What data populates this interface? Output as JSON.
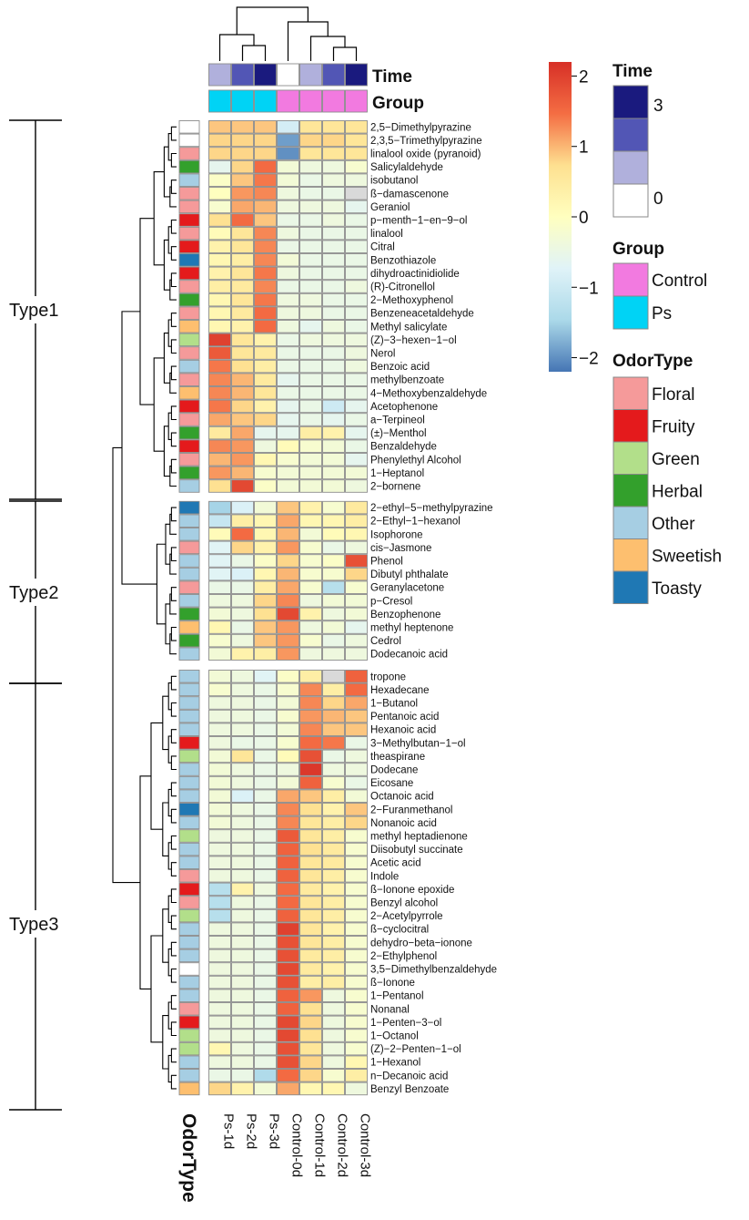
{
  "chart_data": {
    "type": "heatmap",
    "title": "",
    "columns": [
      "Ps-1d",
      "Ps-2d",
      "Ps-3d",
      "Control-0d",
      "Control-1d",
      "Control-2d",
      "Control-3d"
    ],
    "column_annotations": {
      "Time": [
        1,
        2,
        3,
        0,
        1,
        2,
        3
      ],
      "Group": [
        "Ps",
        "Ps",
        "Ps",
        "Control",
        "Control",
        "Control",
        "Control"
      ]
    },
    "rows": [
      "2,5−Dimethylpyrazine",
      "2,3,5−Trimethylpyrazine",
      "linalool oxide (pyranoid)",
      "Salicylaldehyde",
      "isobutanol",
      "ß−damascenone",
      "Geraniol",
      "p−menth−1−en−9−ol",
      "linalool",
      "Citral",
      "Benzothiazole",
      "dihydroactinidiolide",
      "(R)-Citronellol",
      "2−Methoxyphenol",
      "Benzeneacetaldehyde",
      "Methyl salicylate",
      "(Z)−3−hexen−1−ol",
      "Nerol",
      "Benzoic acid",
      "methylbenzoate",
      "4−Methoxybenzaldehyde",
      "Acetophenone",
      "a−Terpineol",
      "(±)−Menthol",
      "Benzaldehyde",
      "Phenylethyl Alcohol",
      "1−Heptanol",
      "2−bornene",
      "2−ethyl−5−methylpyrazine",
      "2−Ethyl−1−hexanol",
      "Isophorone",
      "cis−Jasmone",
      "Phenol",
      "Dibutyl phthalate",
      "Geranylacetone",
      "p−Cresol",
      "Benzophenone",
      "methyl heptenone",
      "Cedrol",
      "Dodecanoic acid",
      "tropone",
      "Hexadecane",
      "1−Butanol",
      "Pentanoic acid",
      "Hexanoic acid",
      "3−Methylbutan−1−ol",
      "theaspirane",
      "Dodecane",
      "Eicosane",
      "Octanoic acid",
      "2−Furanmethanol",
      "Nonanoic acid",
      "methyl heptadienone",
      "Diisobutyl succinate",
      "Acetic acid",
      "Indole",
      "ß−Ionone epoxide",
      "Benzyl alcohol",
      "2−Acetylpyrrole",
      "ß−cyclocitral",
      "dehydro−beta−ionone",
      "2−Ethylphenol",
      "3,5−Dimethylbenzaldehyde",
      "ß−Ionone",
      "1−Pentanol",
      "Nonanal",
      "1−Penten−3−ol",
      "1−Octanol",
      "(Z)−2−Penten−1−ol",
      "1−Hexanol",
      "n−Decanoic acid",
      "Benzyl Benzoate"
    ],
    "odor_type": [
      "None",
      "None",
      "Floral",
      "Herbal",
      "Other",
      "Floral",
      "Floral",
      "Fruity",
      "Floral",
      "Fruity",
      "Toasty",
      "Fruity",
      "Floral",
      "Herbal",
      "Floral",
      "Sweetish",
      "Green",
      "Floral",
      "Other",
      "Floral",
      "Sweetish",
      "Fruity",
      "Floral",
      "Herbal",
      "Fruity",
      "Floral",
      "Herbal",
      "Other",
      "Toasty",
      "Other",
      "Other",
      "Floral",
      "Other",
      "Other",
      "Floral",
      "Other",
      "Herbal",
      "Sweetish",
      "Herbal",
      "Other",
      "Other",
      "Other",
      "Other",
      "Other",
      "Other",
      "Fruity",
      "Green",
      "Other",
      "Other",
      "Other",
      "Toasty",
      "Other",
      "Green",
      "Other",
      "Other",
      "Floral",
      "Fruity",
      "Floral",
      "Green",
      "Other",
      "Other",
      "Other",
      "None",
      "Other",
      "Other",
      "Floral",
      "Fruity",
      "Green",
      "Green",
      "Other",
      "Other",
      "Sweetish"
    ],
    "values": [
      [
        0.9,
        0.9,
        0.9,
        -0.9,
        0.6,
        0.6,
        0.6
      ],
      [
        0.8,
        0.8,
        0.8,
        -1.9,
        0.8,
        0.8,
        0.6
      ],
      [
        0.8,
        0.8,
        0.8,
        -2.0,
        0.6,
        0.6,
        0.6
      ],
      [
        -0.6,
        0.8,
        1.5,
        -0.3,
        -0.4,
        -0.4,
        -0.2
      ],
      [
        -0.1,
        0.9,
        1.4,
        -0.3,
        -0.5,
        -0.4,
        -0.4
      ],
      [
        0.0,
        1.2,
        1.3,
        -0.4,
        -0.5,
        -0.5,
        "NA"
      ],
      [
        -0.2,
        1.1,
        1.0,
        -0.4,
        -0.4,
        -0.4,
        -0.6
      ],
      [
        0.7,
        1.5,
        0.9,
        -0.5,
        -0.5,
        -0.4,
        -0.5
      ],
      [
        0.1,
        0.6,
        1.3,
        -0.4,
        -0.5,
        -0.5,
        -0.5
      ],
      [
        0.3,
        0.6,
        1.3,
        -0.5,
        -0.5,
        -0.5,
        -0.5
      ],
      [
        0.2,
        0.4,
        1.3,
        -0.3,
        -0.5,
        -0.5,
        -0.5
      ],
      [
        0.3,
        0.6,
        1.4,
        -0.4,
        -0.5,
        -0.5,
        -0.5
      ],
      [
        0.4,
        0.5,
        1.3,
        -0.5,
        -0.5,
        -0.5,
        -0.4
      ],
      [
        0.2,
        0.6,
        1.4,
        -0.4,
        -0.4,
        -0.5,
        -0.5
      ],
      [
        0.2,
        0.5,
        1.5,
        -0.4,
        -0.4,
        -0.5,
        -0.5
      ],
      [
        0.2,
        0.3,
        1.5,
        -0.4,
        -0.6,
        -0.4,
        -0.5
      ],
      [
        2.0,
        0.6,
        0.3,
        -0.5,
        -0.4,
        -0.4,
        -0.4
      ],
      [
        1.7,
        0.6,
        0.5,
        -0.5,
        -0.5,
        -0.5,
        -0.4
      ],
      [
        1.4,
        0.7,
        0.4,
        -0.5,
        -0.5,
        -0.5,
        -0.4
      ],
      [
        1.3,
        1.0,
        0.5,
        -0.6,
        -0.5,
        -0.5,
        -0.5
      ],
      [
        1.3,
        1.0,
        0.6,
        -0.5,
        -0.5,
        -0.5,
        -0.5
      ],
      [
        1.4,
        0.8,
        0.3,
        -0.6,
        -0.5,
        -1.0,
        -0.6
      ],
      [
        1.1,
        0.9,
        0.8,
        -0.6,
        -0.5,
        -0.6,
        -0.5
      ],
      [
        0.5,
        1.1,
        -0.6,
        -0.6,
        0.4,
        0.3,
        -0.6
      ],
      [
        1.3,
        1.2,
        -0.4,
        0.1,
        -0.2,
        -0.3,
        -0.5
      ],
      [
        1.0,
        1.2,
        0.2,
        -0.2,
        -0.3,
        -0.3,
        -0.6
      ],
      [
        1.2,
        1.0,
        -0.2,
        -0.3,
        -0.3,
        -0.3,
        -0.3
      ],
      [
        0.7,
        1.9,
        -0.1,
        -0.3,
        -0.3,
        -0.3,
        -0.4
      ],
      [
        -1.5,
        -0.8,
        -0.3,
        0.9,
        0.3,
        -0.2,
        0.5
      ],
      [
        -1.1,
        0.4,
        0.2,
        1.1,
        0.2,
        0.2,
        0.4
      ],
      [
        0.1,
        1.5,
        0.2,
        1.0,
        -0.3,
        0.1,
        0.2
      ],
      [
        -0.7,
        0.8,
        0.3,
        1.2,
        -0.2,
        -0.5,
        -0.4
      ],
      [
        -0.7,
        -0.5,
        -0.1,
        0.8,
        -0.2,
        -0.1,
        1.8
      ],
      [
        -0.7,
        -0.8,
        0.2,
        1.0,
        -0.2,
        -0.2,
        0.8
      ],
      [
        -0.5,
        -0.5,
        0.4,
        1.1,
        -0.2,
        -1.3,
        -0.2
      ],
      [
        -0.4,
        -0.4,
        0.8,
        1.3,
        -0.4,
        -0.3,
        -0.3
      ],
      [
        -0.3,
        -0.4,
        0.7,
        1.9,
        0.3,
        -0.4,
        -0.3
      ],
      [
        0.2,
        -0.5,
        0.9,
        1.2,
        -0.4,
        -0.3,
        -0.6
      ],
      [
        -0.2,
        -0.4,
        0.9,
        1.2,
        -0.2,
        -0.5,
        -0.4
      ],
      [
        -0.3,
        0.3,
        0.4,
        1.2,
        -0.4,
        -0.4,
        -0.4
      ],
      [
        -0.3,
        -0.4,
        -0.7,
        -0.1,
        0.4,
        "NA",
        1.6
      ],
      [
        -0.2,
        -0.4,
        -0.5,
        -0.2,
        1.3,
        0.4,
        1.5
      ],
      [
        -0.4,
        -0.4,
        -0.5,
        -0.3,
        1.3,
        0.8,
        1.1
      ],
      [
        -0.4,
        -0.4,
        -0.5,
        -0.2,
        1.2,
        1.0,
        0.9
      ],
      [
        -0.4,
        -0.4,
        -0.5,
        -0.3,
        1.3,
        0.9,
        0.9
      ],
      [
        -0.4,
        -0.5,
        -0.5,
        -0.2,
        1.5,
        1.4,
        -0.5
      ],
      [
        -0.3,
        0.6,
        -0.5,
        0.1,
        1.8,
        -0.5,
        -0.4
      ],
      [
        -0.3,
        -0.4,
        -0.5,
        -0.4,
        2.1,
        -0.4,
        -0.4
      ],
      [
        -0.3,
        -0.4,
        -0.5,
        -0.3,
        1.6,
        -0.2,
        -0.5
      ],
      [
        -0.3,
        -0.8,
        -0.5,
        1.1,
        0.9,
        0.4,
        -0.3
      ],
      [
        -0.3,
        -0.4,
        -0.5,
        1.3,
        0.7,
        0.3,
        0.9
      ],
      [
        -0.3,
        -0.4,
        -0.5,
        1.3,
        0.6,
        0.4,
        0.8
      ],
      [
        -0.4,
        -0.4,
        -0.5,
        1.7,
        0.6,
        0.4,
        -0.2
      ],
      [
        -0.4,
        -0.4,
        -0.5,
        1.6,
        0.7,
        0.5,
        -0.2
      ],
      [
        -0.4,
        -0.4,
        -0.5,
        1.6,
        0.6,
        0.5,
        -0.2
      ],
      [
        -0.4,
        -0.4,
        -0.5,
        1.6,
        0.6,
        0.4,
        -0.2
      ],
      [
        -1.3,
        0.3,
        -0.4,
        1.5,
        0.5,
        0.3,
        -0.2
      ],
      [
        -1.3,
        -0.4,
        -0.5,
        1.5,
        0.6,
        0.4,
        -0.2
      ],
      [
        -1.3,
        -0.4,
        -0.5,
        1.6,
        0.6,
        0.4,
        -0.2
      ],
      [
        -0.4,
        -0.4,
        -0.5,
        2.0,
        0.6,
        0.3,
        -0.2
      ],
      [
        -0.4,
        -0.4,
        -0.5,
        1.8,
        0.6,
        0.4,
        -0.2
      ],
      [
        -0.4,
        -0.4,
        -0.5,
        1.8,
        0.5,
        0.4,
        -0.2
      ],
      [
        -0.4,
        -0.4,
        -0.5,
        1.9,
        0.5,
        0.3,
        -0.2
      ],
      [
        -0.4,
        -0.4,
        -0.5,
        1.8,
        0.4,
        0.4,
        -0.2
      ],
      [
        -0.4,
        -0.4,
        -0.5,
        1.6,
        1.2,
        -0.4,
        -0.2
      ],
      [
        -0.4,
        -0.4,
        -0.5,
        1.6,
        0.7,
        -0.4,
        -0.2
      ],
      [
        -0.4,
        -0.4,
        -0.5,
        1.9,
        0.8,
        -0.4,
        -0.2
      ],
      [
        -0.4,
        -0.4,
        -0.5,
        1.9,
        0.7,
        -0.4,
        -0.2
      ],
      [
        0.2,
        -0.4,
        -0.5,
        1.8,
        0.6,
        -0.4,
        -0.2
      ],
      [
        -0.4,
        -0.4,
        -0.5,
        1.8,
        0.8,
        -0.4,
        0.2
      ],
      [
        -0.5,
        -0.5,
        -1.4,
        1.5,
        0.8,
        -0.2,
        0.4
      ],
      [
        0.8,
        0.3,
        -0.3,
        1.1,
        0.2,
        0.2,
        -0.4
      ]
    ],
    "color_scale": {
      "min": -2.2,
      "max": 2.2,
      "ticks": [
        2,
        1,
        0,
        -1,
        -2
      ],
      "tick_labels": [
        "2",
        "1",
        "0",
        "−1",
        "−2"
      ],
      "stops": [
        "#4575b4",
        "#abd9e9",
        "#e0f3f8",
        "#ffffbf",
        "#fee090",
        "#f46d43",
        "#d73027"
      ],
      "na_color": "#d9d9d9"
    },
    "clusters": [
      {
        "label": "Type1",
        "first_row": 0,
        "last_row": 27
      },
      {
        "label": "Type2",
        "first_row": 28,
        "last_row": 39
      },
      {
        "label": "Type3",
        "first_row": 40,
        "last_row": 71
      }
    ],
    "annotation_labels": {
      "time": "Time",
      "group": "Group",
      "odortype": "OdorType"
    },
    "legends": {
      "time": {
        "title": "Time",
        "tick_labels": [
          "3",
          "0"
        ],
        "colors": [
          "#1a1a7e",
          "#5256b5",
          "#b0b0dc",
          "#ffffff"
        ]
      },
      "group": {
        "title": "Group",
        "items": [
          {
            "label": "Control",
            "color": "#f27ae0"
          },
          {
            "label": "Ps",
            "color": "#00d3f5"
          }
        ]
      },
      "odortype": {
        "title": "OdorType",
        "items": [
          {
            "label": "Floral",
            "color": "#f59a9a"
          },
          {
            "label": "Fruity",
            "color": "#e41a1c"
          },
          {
            "label": "Green",
            "color": "#b2df8a"
          },
          {
            "label": "Herbal",
            "color": "#33a02c"
          },
          {
            "label": "Other",
            "color": "#a6cee3"
          },
          {
            "label": "Sweetish",
            "color": "#fdbf6f"
          },
          {
            "label": "Toasty",
            "color": "#1f78b4"
          }
        ]
      }
    }
  }
}
